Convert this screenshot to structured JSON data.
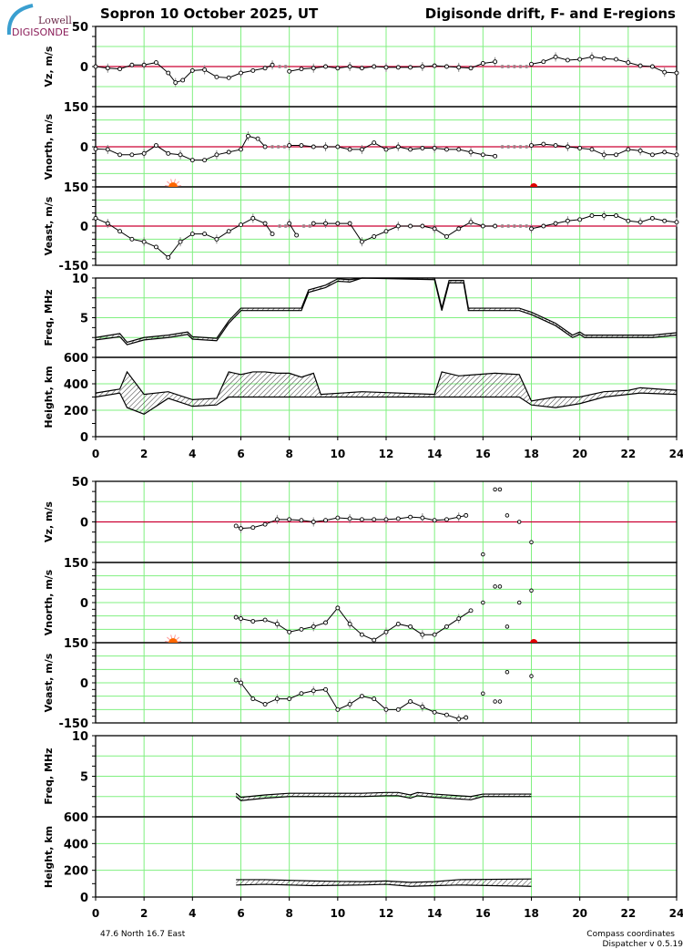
{
  "header": {
    "title_left": "Sopron  10 October 2025, UT",
    "title_right": "Digisonde drift, F- and E-regions",
    "logo_top": "Lowell",
    "logo_bottom": "DIGISONDE"
  },
  "footer": {
    "coords": "47.6 North   16.7 East",
    "compass": "Compass coordinates",
    "version": "Dispatcher v 0.5.19"
  },
  "colors": {
    "grid": "#80f080",
    "zero": "#cc0033",
    "line": "#000000",
    "gap": "#999999",
    "sunrise": "#ff6600",
    "sunset": "#e00000"
  },
  "chart_data": [
    {
      "type": "line",
      "group": "F-region",
      "xlabel": "",
      "xlim": [
        0,
        24
      ],
      "xticks": [
        0,
        2,
        4,
        6,
        8,
        10,
        12,
        14,
        16,
        18,
        20,
        22,
        24
      ],
      "sunrise_h": 3.2,
      "sunset_h": 18.1,
      "panels": [
        {
          "ylabel": "Vz, m/s",
          "ylim": [
            -50,
            50
          ],
          "yticks": [
            0,
            50
          ],
          "grid_step": 25,
          "zero_line": true,
          "x": [
            0,
            0.5,
            1,
            1.5,
            2,
            2.5,
            3,
            3.3,
            3.6,
            4,
            4.5,
            5,
            5.5,
            6,
            6.5,
            7,
            7.3,
            8,
            8.5,
            9,
            9.5,
            10,
            10.5,
            11,
            11.5,
            12,
            12.5,
            13,
            13.5,
            14,
            14.5,
            15,
            15.5,
            16,
            16.5,
            18,
            18.5,
            19,
            19.5,
            20,
            20.5,
            21,
            21.5,
            22,
            22.5,
            23,
            23.5,
            24
          ],
          "y": [
            0,
            -2,
            -3,
            2,
            2,
            5,
            -8,
            -20,
            -17,
            -5,
            -4,
            -13,
            -14,
            -8,
            -5,
            -2,
            2,
            -6,
            -3,
            -2,
            0,
            -2,
            0,
            -2,
            0,
            -1,
            -1,
            -1,
            0,
            1,
            0,
            -1,
            -2,
            4,
            6,
            3,
            6,
            12,
            8,
            9,
            12,
            10,
            9,
            5,
            1,
            0,
            -7,
            -8
          ],
          "gap_after": [
            7.3,
            16.5
          ]
        },
        {
          "ylabel": "Vnorth, m/s",
          "ylim": [
            -150,
            150
          ],
          "yticks": [
            0,
            150
          ],
          "grid_step": 50,
          "zero_line": true,
          "x": [
            0,
            0.5,
            1,
            1.5,
            2,
            2.5,
            3,
            3.5,
            4,
            4.5,
            5,
            5.5,
            6,
            6.3,
            6.7,
            7,
            8,
            8.5,
            9,
            9.5,
            10,
            10.5,
            11,
            11.5,
            12,
            12.5,
            13,
            13.5,
            14,
            14.5,
            15,
            15.5,
            16,
            16.5,
            18,
            18.5,
            19,
            19.5,
            20,
            20.5,
            21,
            21.5,
            22,
            22.5,
            23,
            23.5,
            24
          ],
          "y": [
            -8,
            -10,
            -30,
            -30,
            -25,
            5,
            -25,
            -30,
            -50,
            -50,
            -30,
            -20,
            -10,
            40,
            30,
            0,
            5,
            5,
            0,
            0,
            0,
            -10,
            -10,
            15,
            -10,
            0,
            -10,
            -5,
            -5,
            -10,
            -10,
            -20,
            -30,
            -35,
            5,
            10,
            5,
            0,
            -5,
            -10,
            -30,
            -30,
            -10,
            -15,
            -30,
            -20,
            -30
          ],
          "gap_after": [
            7,
            16.5
          ]
        },
        {
          "ylabel": "Veast, m/s",
          "ylim": [
            -150,
            150
          ],
          "yticks": [
            -150,
            0,
            150
          ],
          "grid_step": 50,
          "zero_line": true,
          "x": [
            0,
            0.5,
            1,
            1.5,
            2,
            2.5,
            3,
            3.5,
            4,
            4.5,
            5,
            5.5,
            6,
            6.5,
            7,
            7.3,
            8,
            8.3,
            9,
            9.5,
            10,
            10.5,
            11,
            11.5,
            12,
            12.5,
            13,
            13.5,
            14,
            14.5,
            15,
            15.5,
            16,
            16.5,
            18,
            18.5,
            19,
            19.5,
            20,
            20.5,
            21,
            21.5,
            22,
            22.5,
            23,
            23.5,
            24
          ],
          "y": [
            30,
            10,
            -20,
            -50,
            -60,
            -80,
            -120,
            -60,
            -30,
            -30,
            -50,
            -20,
            5,
            30,
            10,
            -30,
            10,
            -35,
            10,
            10,
            10,
            10,
            -60,
            -40,
            -20,
            0,
            0,
            0,
            -10,
            -40,
            -10,
            15,
            0,
            0,
            -10,
            0,
            10,
            20,
            25,
            40,
            40,
            40,
            20,
            15,
            30,
            20,
            15
          ],
          "gap_after": [
            7.3,
            8.3,
            16.5
          ]
        },
        {
          "ylabel": "Freq, MHz",
          "ylim": [
            0,
            10
          ],
          "yticks": [
            5,
            10
          ],
          "grid_step": 2.5,
          "band": true,
          "x": [
            0,
            1,
            1.3,
            2,
            3,
            3.8,
            4,
            5,
            5.5,
            6,
            8.5,
            8.8,
            9.5,
            10,
            10.5,
            11,
            14,
            14.3,
            14.6,
            15.2,
            15.4,
            17.5,
            18,
            19,
            19.7,
            20,
            20.2,
            21,
            22,
            23,
            24
          ],
          "low": [
            2.2,
            2.6,
            1.6,
            2.2,
            2.5,
            2.9,
            2.3,
            2.1,
            4.3,
            5.9,
            5.9,
            8.2,
            8.8,
            9.6,
            9.5,
            10,
            9.8,
            5.9,
            9.4,
            9.4,
            5.9,
            5.9,
            5.4,
            4.0,
            2.5,
            2.9,
            2.5,
            2.5,
            2.5,
            2.5,
            2.8
          ],
          "high": [
            2.5,
            3.0,
            1.9,
            2.5,
            2.8,
            3.2,
            2.6,
            2.4,
            4.6,
            6.2,
            6.2,
            8.5,
            9.1,
            9.9,
            9.8,
            10,
            10,
            6.2,
            9.7,
            9.7,
            6.2,
            6.2,
            5.7,
            4.3,
            2.8,
            3.2,
            2.8,
            2.8,
            2.8,
            2.8,
            3.1
          ]
        },
        {
          "ylabel": "Height, km",
          "ylim": [
            0,
            600
          ],
          "yticks": [
            0,
            200,
            400,
            600
          ],
          "grid_step": 200,
          "band": true,
          "x": [
            0,
            1,
            1.3,
            2,
            3,
            4,
            5,
            5.5,
            6,
            6.5,
            7,
            7.5,
            8,
            8.5,
            9,
            9.3,
            11,
            14,
            14.3,
            15,
            16.5,
            17.5,
            18,
            19,
            20,
            21,
            22,
            22.5,
            24
          ],
          "low": [
            300,
            330,
            220,
            170,
            290,
            230,
            240,
            300,
            300,
            300,
            300,
            300,
            300,
            300,
            300,
            300,
            300,
            300,
            300,
            300,
            300,
            300,
            240,
            220,
            250,
            300,
            320,
            330,
            320
          ],
          "high": [
            330,
            360,
            490,
            320,
            340,
            280,
            290,
            490,
            470,
            490,
            490,
            480,
            480,
            450,
            480,
            320,
            340,
            320,
            490,
            460,
            480,
            470,
            270,
            300,
            300,
            340,
            350,
            370,
            350
          ]
        }
      ]
    },
    {
      "type": "line",
      "group": "E-region",
      "xlabel": "",
      "xlim": [
        0,
        24
      ],
      "xticks": [
        0,
        2,
        4,
        6,
        8,
        10,
        12,
        14,
        16,
        18,
        20,
        22,
        24
      ],
      "sunrise_h": 3.2,
      "sunset_h": 18.1,
      "panels": [
        {
          "ylabel": "Vz, m/s",
          "ylim": [
            -50,
            50
          ],
          "yticks": [
            0,
            50
          ],
          "grid_step": 25,
          "zero_line": true,
          "x": [
            5.8,
            6,
            6.5,
            7,
            7.5,
            8,
            8.5,
            9,
            9.5,
            10,
            10.5,
            11,
            11.5,
            12,
            12.5,
            13,
            13.5,
            14,
            14.5,
            15,
            15.3
          ],
          "y": [
            -5,
            -8,
            -7,
            -3,
            3,
            3,
            2,
            0,
            2,
            5,
            4,
            3,
            3,
            3,
            4,
            6,
            5,
            2,
            3,
            6,
            8
          ],
          "scatter_x": [
            16,
            16.5,
            16.7,
            17,
            17.5,
            18
          ],
          "scatter_y": [
            -40,
            40,
            40,
            8,
            0,
            -25
          ]
        },
        {
          "ylabel": "Vnorth, m/s",
          "ylim": [
            -150,
            150
          ],
          "yticks": [
            0,
            150
          ],
          "grid_step": 50,
          "zero_line": false,
          "x": [
            5.8,
            6,
            6.5,
            7,
            7.5,
            8,
            8.5,
            9,
            9.5,
            10,
            10.5,
            11,
            11.5,
            12,
            12.5,
            13,
            13.5,
            14,
            14.5,
            15,
            15.5
          ],
          "y": [
            -55,
            -60,
            -70,
            -65,
            -80,
            -110,
            -100,
            -90,
            -75,
            -20,
            -80,
            -120,
            -140,
            -110,
            -80,
            -90,
            -120,
            -120,
            -90,
            -60,
            -30
          ],
          "scatter_x": [
            16,
            16.5,
            16.7,
            17,
            17.5,
            18
          ],
          "scatter_y": [
            0,
            60,
            60,
            -90,
            0,
            45
          ]
        },
        {
          "ylabel": "Veast, m/s",
          "ylim": [
            -150,
            150
          ],
          "yticks": [
            -150,
            0,
            150
          ],
          "grid_step": 50,
          "zero_line": false,
          "x": [
            5.8,
            6,
            6.5,
            7,
            7.5,
            8,
            8.5,
            9,
            9.5,
            10,
            10.5,
            11,
            11.5,
            12,
            12.5,
            13,
            13.5,
            14,
            14.5,
            15,
            15.3
          ],
          "y": [
            10,
            0,
            -60,
            -80,
            -60,
            -60,
            -40,
            -30,
            -25,
            -100,
            -80,
            -50,
            -60,
            -100,
            -100,
            -70,
            -90,
            -110,
            -120,
            -135,
            -130
          ],
          "scatter_x": [
            16,
            16.5,
            16.7,
            17,
            18
          ],
          "scatter_y": [
            -40,
            -70,
            -70,
            40,
            25
          ]
        },
        {
          "ylabel": "Freq, MHz",
          "ylim": [
            0,
            10
          ],
          "yticks": [
            5,
            10
          ],
          "grid_step": 2.5,
          "band": true,
          "x": [
            5.8,
            6,
            7,
            8,
            9,
            10,
            11,
            12,
            12.5,
            13,
            13.3,
            14,
            15,
            15.5,
            16,
            17,
            18
          ],
          "low": [
            2.5,
            2.0,
            2.3,
            2.5,
            2.5,
            2.5,
            2.5,
            2.6,
            2.6,
            2.3,
            2.6,
            2.4,
            2.2,
            2.1,
            2.5,
            2.5,
            2.5
          ],
          "high": [
            2.9,
            2.4,
            2.7,
            2.9,
            2.9,
            2.9,
            2.9,
            3.0,
            3.0,
            2.7,
            3.0,
            2.8,
            2.6,
            2.5,
            2.8,
            2.8,
            2.8
          ]
        },
        {
          "ylabel": "Height, km",
          "ylim": [
            0,
            600
          ],
          "yticks": [
            0,
            200,
            400,
            600
          ],
          "grid_step": 200,
          "band": true,
          "x": [
            5.8,
            7,
            9,
            11,
            12,
            13,
            14,
            15,
            18
          ],
          "low": [
            90,
            95,
            85,
            90,
            95,
            80,
            85,
            90,
            80
          ],
          "high": [
            130,
            130,
            120,
            115,
            120,
            110,
            115,
            130,
            135
          ]
        }
      ]
    }
  ]
}
